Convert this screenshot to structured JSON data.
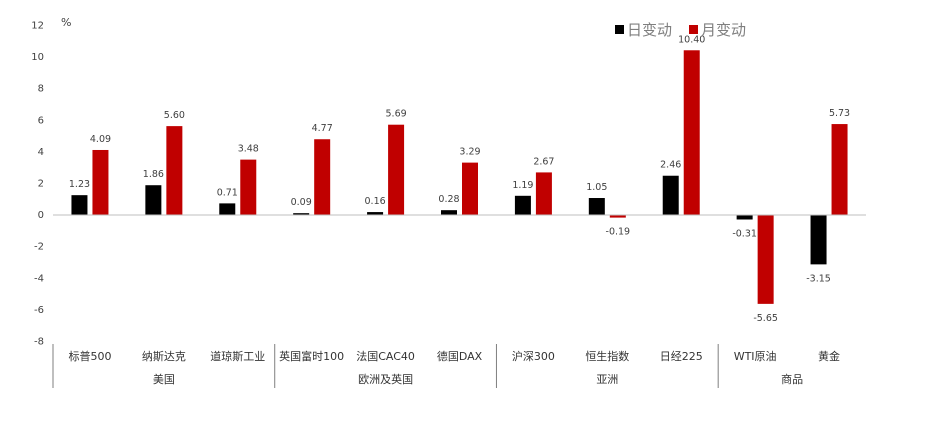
{
  "chart_data": {
    "type": "bar",
    "unit_label": "%",
    "ylim": [
      -8,
      12
    ],
    "yticks": [
      12,
      10,
      8,
      6,
      4,
      2,
      0,
      -2,
      -4,
      -6,
      -8
    ],
    "legend_position": "top-right",
    "grid": false,
    "categories": [
      "标普500",
      "纳斯达克",
      "道琼斯工业",
      "英国富时100",
      "法国CAC40",
      "德国DAX",
      "沪深300",
      "恒生指数",
      "日经225",
      "WTI原油",
      "黄金"
    ],
    "groups": [
      {
        "label": "美国",
        "count": 3
      },
      {
        "label": "欧洲及英国",
        "count": 3
      },
      {
        "label": "亚洲",
        "count": 3
      },
      {
        "label": "商品",
        "count": 2
      }
    ],
    "series": [
      {
        "name": "日变动",
        "color": "#000000",
        "values": [
          1.23,
          1.86,
          0.71,
          0.09,
          0.16,
          0.28,
          1.19,
          1.05,
          2.46,
          -0.31,
          -3.15
        ]
      },
      {
        "name": "月变动",
        "color": "#c00000",
        "values": [
          4.09,
          5.6,
          3.48,
          4.77,
          5.69,
          3.29,
          2.67,
          -0.19,
          10.4,
          -5.65,
          5.73
        ]
      }
    ]
  }
}
